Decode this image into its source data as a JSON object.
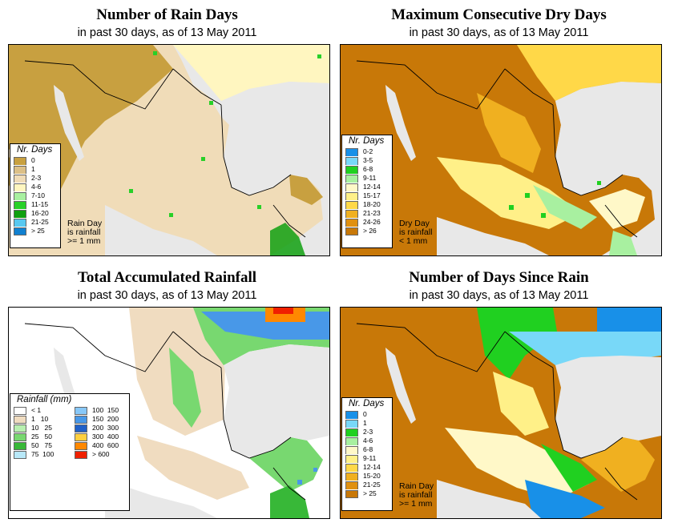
{
  "panels": [
    {
      "id": "rain-days",
      "title": "Number of Rain Days",
      "subtitle": "in past 30 days, as of  13 May 2011",
      "legend_title": "Nr. Days",
      "legend": [
        {
          "label": "0",
          "color": "#c8a040"
        },
        {
          "label": "1",
          "color": "#dcc088"
        },
        {
          "label": "2-3",
          "color": "#f0dcb8"
        },
        {
          "label": "4-6",
          "color": "#fff6c0"
        },
        {
          "label": "7-10",
          "color": "#a8f0a0"
        },
        {
          "label": "11-15",
          "color": "#28d028"
        },
        {
          "label": "16-20",
          "color": "#10a010"
        },
        {
          "label": "21-25",
          "color": "#58c8f0"
        },
        {
          "label": "> 25",
          "color": "#1080d0"
        }
      ],
      "note": [
        "Rain Day",
        "is rainfall",
        ">= 1 mm"
      ]
    },
    {
      "id": "max-dry-days",
      "title": "Maximum Consecutive Dry Days",
      "subtitle": "in past 30 days, as of  13 May 2011",
      "legend_title": "Nr. Days",
      "legend": [
        {
          "label": "0-2",
          "color": "#1890e8"
        },
        {
          "label": "3-5",
          "color": "#78d8f8"
        },
        {
          "label": "6-8",
          "color": "#20d020"
        },
        {
          "label": "9-11",
          "color": "#a8f0a0"
        },
        {
          "label": "12-14",
          "color": "#fff8c8"
        },
        {
          "label": "15-17",
          "color": "#fff088"
        },
        {
          "label": "18-20",
          "color": "#ffd848"
        },
        {
          "label": "21-23",
          "color": "#f0b020"
        },
        {
          "label": "24-26",
          "color": "#e09010"
        },
        {
          "label": "> 26",
          "color": "#c87808"
        }
      ],
      "note": [
        "Dry Day",
        "is rainfall",
        "< 1 mm"
      ]
    },
    {
      "id": "total-rainfall",
      "title": "Total Accumulated Rainfall",
      "subtitle": "in past 30 days, as of  13 May 2011",
      "legend_title": "Rainfall (mm)",
      "legend": [
        {
          "label": "< 1",
          "color": "#ffffff"
        },
        {
          "label": "1   10",
          "color": "#f0dcc0"
        },
        {
          "label": "10   25",
          "color": "#b8f0b0"
        },
        {
          "label": "25   50",
          "color": "#78d870"
        },
        {
          "label": "50   75",
          "color": "#38b838"
        },
        {
          "label": "75  100",
          "color": "#b8e8f8"
        },
        {
          "label": "100  150",
          "color": "#88c8f8"
        },
        {
          "label": "150  200",
          "color": "#4898e8"
        },
        {
          "label": "200  300",
          "color": "#2060c8"
        },
        {
          "label": "300  400",
          "color": "#ffd040"
        },
        {
          "label": "400  600",
          "color": "#ff8800"
        },
        {
          "label": "> 600",
          "color": "#f02000"
        }
      ],
      "note": []
    },
    {
      "id": "days-since-rain",
      "title": "Number of Days Since Rain",
      "subtitle": "in past 30 days, as of  13 May 2011",
      "legend_title": "Nr. Days",
      "legend": [
        {
          "label": "0",
          "color": "#1890e8"
        },
        {
          "label": "1",
          "color": "#78d8f8"
        },
        {
          "label": "2-3",
          "color": "#20d020"
        },
        {
          "label": "4-6",
          "color": "#a8f0a0"
        },
        {
          "label": "6-8",
          "color": "#fff8c8"
        },
        {
          "label": "9-11",
          "color": "#fff088"
        },
        {
          "label": "12-14",
          "color": "#ffd848"
        },
        {
          "label": "15-20",
          "color": "#f0b020"
        },
        {
          "label": "21-25",
          "color": "#e09010"
        },
        {
          "label": "> 25",
          "color": "#c87808"
        }
      ],
      "note": [
        "Rain Day",
        "is rainfall",
        ">= 1 mm"
      ]
    }
  ]
}
